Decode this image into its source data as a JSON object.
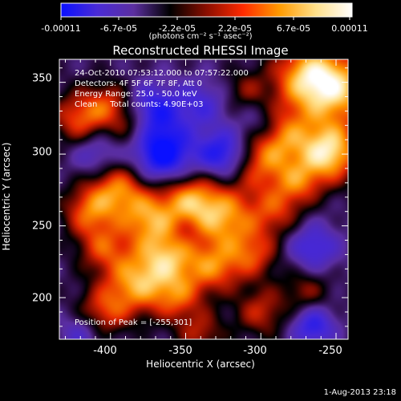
{
  "colorbar": {
    "tick_labels": [
      "-0.00011",
      "-6.7e-05",
      "-2.2e-05",
      "2.2e-05",
      "6.7e-05",
      "0.00011"
    ],
    "units": "(photons cm⁻² s⁻¹ asec⁻²)",
    "colors": [
      "#0a10ff",
      "#4a2bd6",
      "#5b2fa0",
      "#000000",
      "#8a0e00",
      "#ff2a00",
      "#ff9a00",
      "#ffe08a",
      "#ffffff"
    ]
  },
  "chart_data": {
    "type": "heatmap",
    "title": "Reconstructed RHESSI Image",
    "xlabel": "Heliocentric X (arcsec)",
    "ylabel": "Heliocentric Y (arcsec)",
    "xlim": [
      -434,
      -242
    ],
    "ylim": [
      171,
      366
    ],
    "x_ticks": [
      -400,
      -350,
      -300,
      -250
    ],
    "y_ticks": [
      200,
      250,
      300,
      350
    ],
    "zlim": [
      -0.00011,
      0.00011
    ],
    "blobs": [
      {
        "x": -255,
        "y": 301,
        "amp": 1.0,
        "r": 14
      },
      {
        "x": -250,
        "y": 345,
        "amp": 0.85,
        "r": 18
      },
      {
        "x": -270,
        "y": 355,
        "amp": 0.7,
        "r": 16
      },
      {
        "x": -285,
        "y": 315,
        "amp": 0.55,
        "r": 14
      },
      {
        "x": -300,
        "y": 295,
        "amp": 0.6,
        "r": 15
      },
      {
        "x": -325,
        "y": 255,
        "amp": 0.75,
        "r": 16
      },
      {
        "x": -348,
        "y": 268,
        "amp": 0.7,
        "r": 14
      },
      {
        "x": -360,
        "y": 230,
        "amp": 0.8,
        "r": 15
      },
      {
        "x": -375,
        "y": 255,
        "amp": 0.6,
        "r": 13
      },
      {
        "x": -383,
        "y": 210,
        "amp": 0.75,
        "r": 15
      },
      {
        "x": -395,
        "y": 275,
        "amp": 0.7,
        "r": 14
      },
      {
        "x": -405,
        "y": 235,
        "amp": 0.5,
        "r": 12
      },
      {
        "x": -415,
        "y": 260,
        "amp": 0.55,
        "r": 12
      },
      {
        "x": -405,
        "y": 190,
        "amp": 0.5,
        "r": 12
      },
      {
        "x": -420,
        "y": 325,
        "amp": 0.6,
        "r": 13
      },
      {
        "x": -400,
        "y": 335,
        "amp": 0.45,
        "r": 11
      },
      {
        "x": -385,
        "y": 320,
        "amp": 0.4,
        "r": 10
      },
      {
        "x": -355,
        "y": 200,
        "amp": 0.5,
        "r": 12
      },
      {
        "x": -330,
        "y": 220,
        "amp": 0.55,
        "r": 12
      },
      {
        "x": -305,
        "y": 230,
        "amp": 0.5,
        "r": 12
      },
      {
        "x": -290,
        "y": 260,
        "amp": 0.45,
        "r": 12
      },
      {
        "x": -275,
        "y": 280,
        "amp": 0.5,
        "r": 11
      },
      {
        "x": -300,
        "y": 190,
        "amp": 0.45,
        "r": 12
      },
      {
        "x": -270,
        "y": 205,
        "amp": 0.35,
        "r": 11
      },
      {
        "x": -340,
        "y": 175,
        "amp": 0.4,
        "r": 11
      },
      {
        "x": -310,
        "y": 345,
        "amp": 0.3,
        "r": 10
      },
      {
        "x": -365,
        "y": 300,
        "amp": -0.9,
        "r": 14
      },
      {
        "x": -372,
        "y": 330,
        "amp": -0.65,
        "r": 13
      },
      {
        "x": -325,
        "y": 300,
        "amp": -0.75,
        "r": 12
      },
      {
        "x": -340,
        "y": 335,
        "amp": -0.4,
        "r": 12
      },
      {
        "x": -410,
        "y": 300,
        "amp": -0.4,
        "r": 11
      },
      {
        "x": -265,
        "y": 235,
        "amp": -0.5,
        "r": 12
      },
      {
        "x": -265,
        "y": 180,
        "amp": -0.6,
        "r": 10
      },
      {
        "x": -420,
        "y": 175,
        "amp": -0.35,
        "r": 10
      },
      {
        "x": -350,
        "y": 245,
        "amp": -0.3,
        "r": 10
      },
      {
        "x": -300,
        "y": 320,
        "amp": -0.35,
        "r": 10
      }
    ]
  },
  "info": {
    "line1": "24-Oct-2010 07:53:12.000 to 07:57:22.000",
    "line2": "Detectors: 4F 5F 6F 7F 8F, Att 0",
    "line3": "Energy Range: 25.0 - 50.0 keV",
    "line4": "Clean     Total counts: 4.90E+03"
  },
  "peak_label": "Position of Peak = [-255,301]",
  "footer_date": "1-Aug-2013 23:18"
}
